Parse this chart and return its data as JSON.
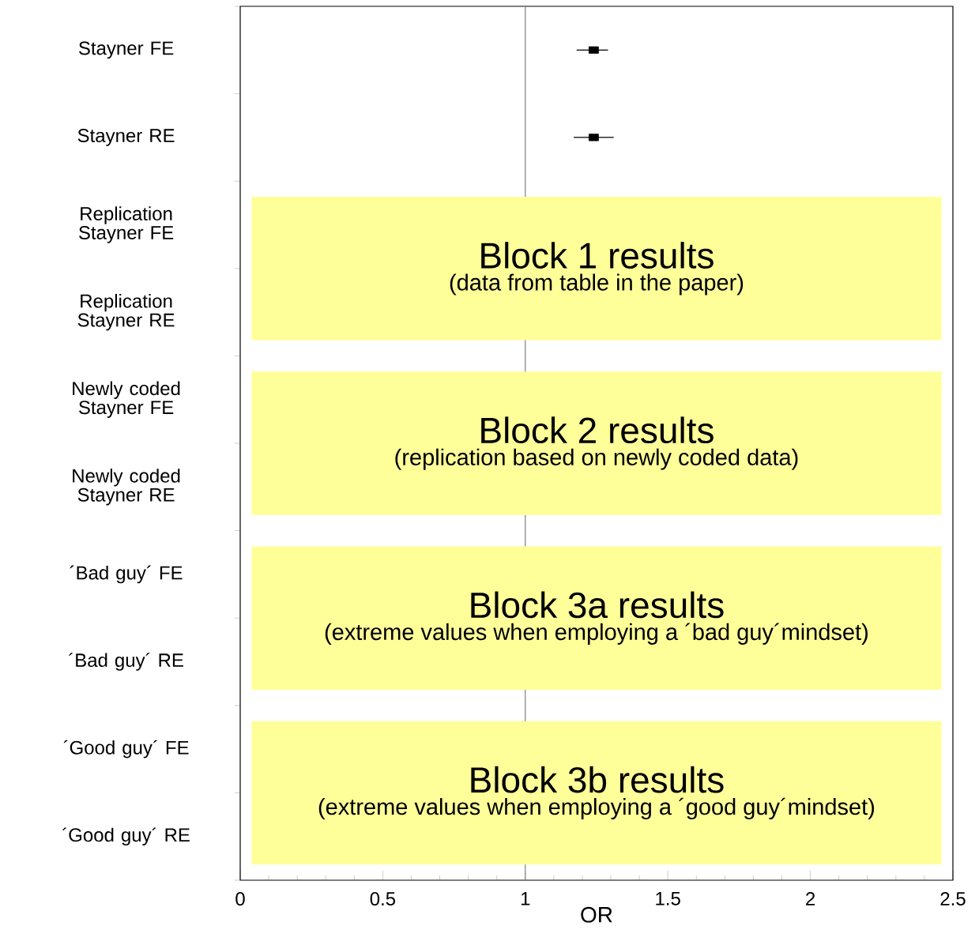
{
  "chart_data": {
    "type": "scatter",
    "orientation": "horizontal",
    "marker": "square",
    "color": "#000000",
    "categories": [
      "Stayner FE",
      "Stayner RE",
      "Replication Stayner FE",
      "Replication Stayner RE",
      "Newly coded Stayner FE",
      "Newly coded Stayner RE",
      "´Bad guy´ FE",
      "´Bad guy´ RE",
      "´Good guy´ FE",
      "´Good guy´ RE"
    ],
    "values": [
      1.24,
      1.24,
      null,
      null,
      null,
      null,
      null,
      null,
      null,
      null
    ],
    "errors": [
      [
        1.18,
        1.29
      ],
      [
        1.17,
        1.31
      ],
      null,
      null,
      null,
      null,
      null,
      null,
      null,
      null
    ],
    "xlabel": "OR",
    "xlim": [
      0,
      2.5
    ],
    "xticks": [
      0,
      0.5,
      1,
      1.5,
      2,
      2.5
    ],
    "ref_lines": [
      {
        "axis": "x",
        "value": 1,
        "color": "#808080"
      }
    ],
    "bands": [
      {
        "axis": "y",
        "from": "Replication Stayner FE",
        "to": "Replication Stayner RE",
        "label": "Block 1 results",
        "color": "#ffff99"
      },
      {
        "axis": "y",
        "from": "Newly coded Stayner FE",
        "to": "Newly coded Stayner RE",
        "label": "Block 2 results",
        "color": "#ffff99"
      },
      {
        "axis": "y",
        "from": "´Bad guy´ FE",
        "to": "´Bad guy´ RE",
        "label": "Block 3a results",
        "color": "#ffff99"
      },
      {
        "axis": "y",
        "from": "´Good guy´ FE",
        "to": "´Good guy´ RE",
        "label": "Block 3b results",
        "color": "#ffff99"
      }
    ],
    "annotations": [
      "(data from table in the paper)",
      "(replication based on newly coded data)",
      "(extreme values when employing a ´bad guy´mindset)",
      "(extreme values when employing a ´good guy´mindset)"
    ]
  }
}
